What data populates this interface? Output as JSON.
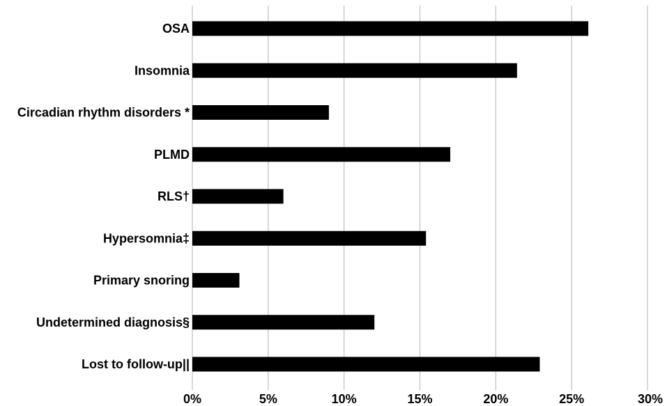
{
  "chart_data": {
    "type": "bar",
    "orientation": "horizontal",
    "categories": [
      "OSA",
      "Insomnia",
      "Circadian rhythm disorders *",
      "PLMD",
      "RLS†",
      "Hypersomnia‡",
      "Primary snoring",
      "Undetermined diagnosis§",
      "Lost to follow-up||"
    ],
    "values": [
      26.1,
      21.4,
      9.0,
      17.0,
      6.0,
      15.4,
      3.1,
      12.0,
      22.9
    ],
    "xlim": [
      0,
      30
    ],
    "x_ticks": [
      0,
      5,
      10,
      15,
      20,
      25,
      30
    ],
    "x_tick_labels": [
      "0%",
      "5%",
      "10%",
      "15%",
      "20%",
      "25%",
      "30%"
    ],
    "title": "",
    "xlabel": "",
    "ylabel": "",
    "grid": true,
    "legend": "none",
    "bar_color": "#000000",
    "grid_color": "#b3b3b3"
  }
}
